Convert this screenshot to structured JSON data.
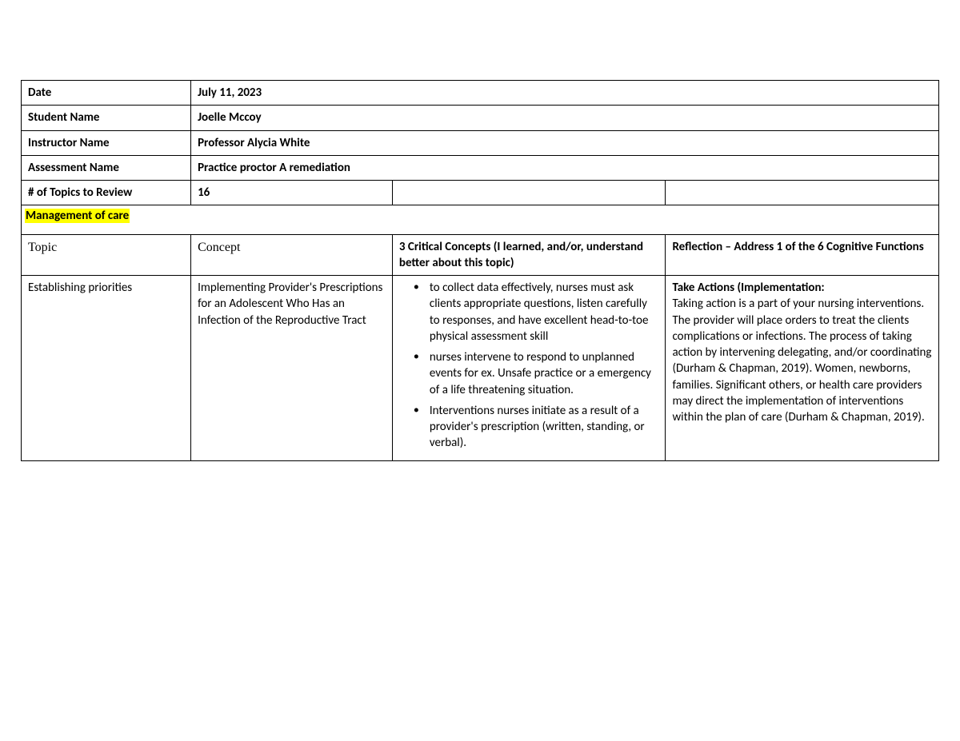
{
  "header": {
    "date_label": "Date",
    "date_value": "July 11, 2023",
    "student_label": "Student Name",
    "student_value": "Joelle Mccoy",
    "instructor_label": "Instructor Name",
    "instructor_value": "Professor Alycia White",
    "assessment_label": "Assessment Name",
    "assessment_value": "Practice proctor A remediation",
    "topics_label": "# of Topics to Review",
    "topics_value": "16"
  },
  "section_title": "Management of care",
  "table_head": {
    "topic": "Topic",
    "concept": "Concept",
    "critical": "3 Critical Concepts (I learned, and/or, understand better about this topic)",
    "reflection": "Reflection – Address 1 of the 6 Cognitive Functions"
  },
  "row1": {
    "topic": "Establishing priorities",
    "concept": "Implementing Provider's Prescriptions for an Adolescent Who Has an Infection of the Reproductive Tract",
    "bullets": [
      "to collect data effectively, nurses must ask clients appropriate questions, listen carefully to responses, and have excellent head-to-toe physical assessment skill",
      "nurses intervene to respond to unplanned events for ex. Unsafe practice or a emergency of a life threatening situation.",
      "Interventions nurses initiate as a result of a provider's prescription (written, standing, or verbal)."
    ],
    "reflection_title": "Take Actions (Implementation:",
    "reflection_body": "Taking action is a part of your nursing interventions. The provider will place orders to treat the clients complications or infections. The process of taking action by intervening delegating, and/or coordinating (Durham & Chapman, 2019). Women, newborns, families. Significant others, or health care providers may direct the implementation of interventions within the plan of care (Durham & Chapman, 2019)."
  }
}
